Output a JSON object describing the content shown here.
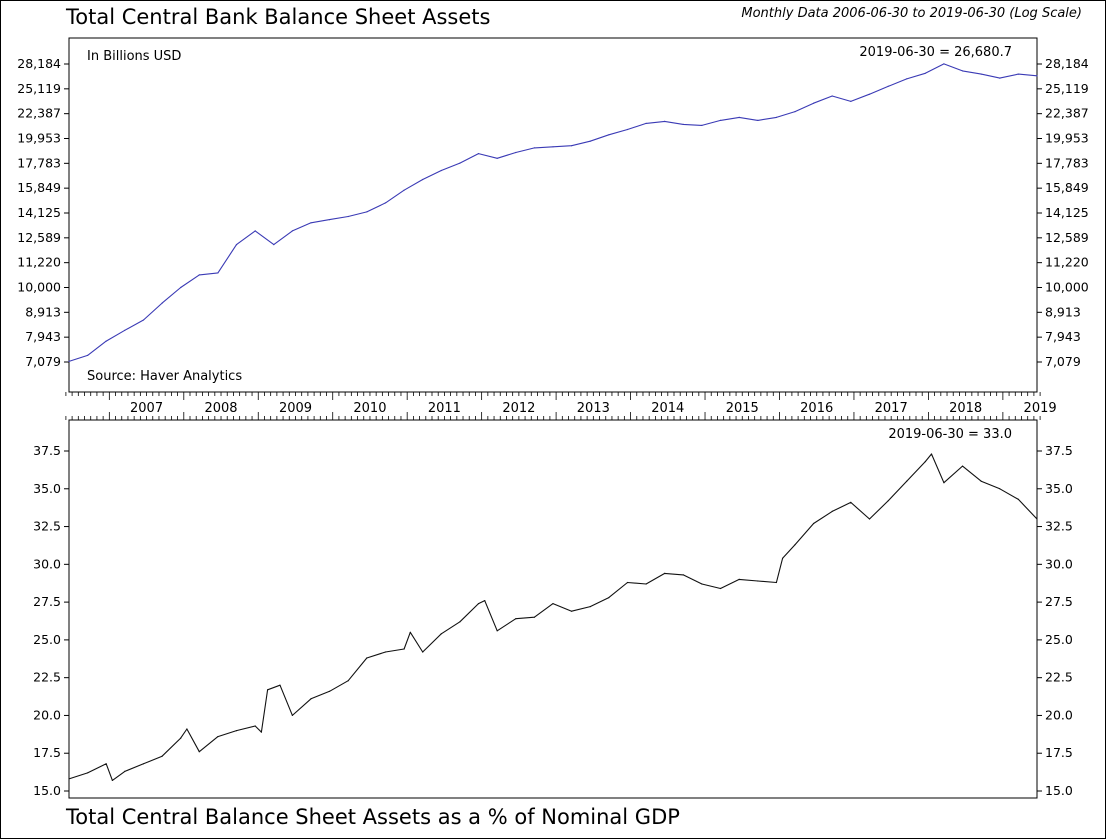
{
  "header": {
    "title": "Total Central Bank Balance Sheet Assets",
    "subtitle": "Monthly Data 2006-06-30 to 2019-06-30 (Log Scale)"
  },
  "footer": {
    "title": "Total Central Balance Sheet Assets as a % of Nominal GDP"
  },
  "chart_data": [
    {
      "type": "line",
      "title": "Total Central Bank Balance Sheet Assets",
      "unit_note": "In Billions USD",
      "source": "Source: Haver Analytics",
      "last_value_label": "2019-06-30 = 26,680.7",
      "scale": "log",
      "ylim": [
        6700,
        29800
      ],
      "y_ticks": [
        7079,
        7943,
        8913,
        10000,
        11220,
        12589,
        14125,
        15849,
        17783,
        19953,
        22387,
        25119,
        28184
      ],
      "y_tick_labels": [
        "7,079",
        "7,943",
        "8,913",
        "10,000",
        "11,220",
        "12,589",
        "14,125",
        "15,849",
        "17,783",
        "19,953",
        "22,387",
        "25,119",
        "28,184"
      ],
      "x_labels": [
        "2007",
        "2008",
        "2009",
        "2010",
        "2011",
        "2012",
        "2013",
        "2014",
        "2015",
        "2016",
        "2017",
        "2018",
        "2019"
      ],
      "x_start": "2006-06-30",
      "x_end": "2019-06-30",
      "line_color": "#3a3ab5",
      "grid": false,
      "series": [
        {
          "dates": [
            "2006-06",
            "2006-09",
            "2006-12",
            "2007-03",
            "2007-06",
            "2007-09",
            "2007-12",
            "2008-03",
            "2008-06",
            "2008-09",
            "2008-12",
            "2009-03",
            "2009-06",
            "2009-09",
            "2009-12",
            "2010-03",
            "2010-06",
            "2010-09",
            "2010-12",
            "2011-03",
            "2011-06",
            "2011-09",
            "2011-12",
            "2012-03",
            "2012-06",
            "2012-09",
            "2012-12",
            "2013-03",
            "2013-06",
            "2013-09",
            "2013-12",
            "2014-03",
            "2014-06",
            "2014-09",
            "2014-12",
            "2015-03",
            "2015-06",
            "2015-09",
            "2015-12",
            "2016-03",
            "2016-06",
            "2016-09",
            "2016-12",
            "2017-03",
            "2017-06",
            "2017-09",
            "2017-12",
            "2018-03",
            "2018-06",
            "2018-09",
            "2018-12",
            "2019-03",
            "2019-06"
          ],
          "values": [
            7100,
            7300,
            7800,
            8200,
            8600,
            9300,
            10000,
            10600,
            10700,
            12200,
            13000,
            12200,
            13000,
            13500,
            13700,
            13900,
            14200,
            14800,
            15700,
            16500,
            17200,
            17800,
            18600,
            18200,
            18700,
            19100,
            19200,
            19300,
            19700,
            20300,
            20800,
            21400,
            21600,
            21300,
            21200,
            21700,
            22000,
            21700,
            22000,
            22600,
            23500,
            24300,
            23700,
            24500,
            25400,
            26300,
            27000,
            28200,
            27300,
            26900,
            26400,
            26900,
            26680.7
          ]
        }
      ]
    },
    {
      "type": "line",
      "title": "Total Central Balance Sheet Assets as a % of Nominal GDP",
      "last_value_label": "2019-06-30 = 33.0",
      "scale": "linear",
      "ylim": [
        14.9,
        38.2
      ],
      "y_ticks": [
        15.0,
        17.5,
        20.0,
        22.5,
        25.0,
        27.5,
        30.0,
        32.5,
        35.0,
        37.5
      ],
      "y_tick_labels": [
        "15.0",
        "17.5",
        "20.0",
        "22.5",
        "25.0",
        "27.5",
        "30.0",
        "32.5",
        "35.0",
        "37.5"
      ],
      "x_start": "2006-06-30",
      "x_end": "2019-06-30",
      "line_color": "#111111",
      "grid": false,
      "series": [
        {
          "dates": [
            "2006-06",
            "2006-09",
            "2006-12",
            "2007-01",
            "2007-03",
            "2007-06",
            "2007-09",
            "2007-12",
            "2008-01",
            "2008-03",
            "2008-06",
            "2008-09",
            "2008-12",
            "2009-01",
            "2009-02",
            "2009-04",
            "2009-06",
            "2009-09",
            "2009-12",
            "2010-03",
            "2010-06",
            "2010-09",
            "2010-12",
            "2011-01",
            "2011-03",
            "2011-06",
            "2011-09",
            "2011-12",
            "2012-01",
            "2012-03",
            "2012-06",
            "2012-09",
            "2012-12",
            "2013-03",
            "2013-06",
            "2013-09",
            "2013-12",
            "2014-03",
            "2014-06",
            "2014-09",
            "2014-12",
            "2015-03",
            "2015-06",
            "2015-09",
            "2015-12",
            "2016-01",
            "2016-03",
            "2016-06",
            "2016-09",
            "2016-12",
            "2017-03",
            "2017-06",
            "2017-09",
            "2017-12",
            "2018-01",
            "2018-03",
            "2018-06",
            "2018-09",
            "2018-12",
            "2019-03",
            "2019-06"
          ],
          "values": [
            15.8,
            16.2,
            16.8,
            15.7,
            16.3,
            16.8,
            17.3,
            18.5,
            19.1,
            17.6,
            18.6,
            19.0,
            19.3,
            18.9,
            21.7,
            22.0,
            20.0,
            21.1,
            21.6,
            22.3,
            23.8,
            24.2,
            24.4,
            25.5,
            24.2,
            25.4,
            26.2,
            27.4,
            27.6,
            25.6,
            26.4,
            26.5,
            27.4,
            26.9,
            27.2,
            27.8,
            28.8,
            28.7,
            29.4,
            29.3,
            28.7,
            28.4,
            29.0,
            28.9,
            28.8,
            30.4,
            31.3,
            32.7,
            33.5,
            34.1,
            33.0,
            34.2,
            35.5,
            36.8,
            37.3,
            35.4,
            36.5,
            35.5,
            35.0,
            34.3,
            33.0
          ]
        }
      ]
    }
  ]
}
